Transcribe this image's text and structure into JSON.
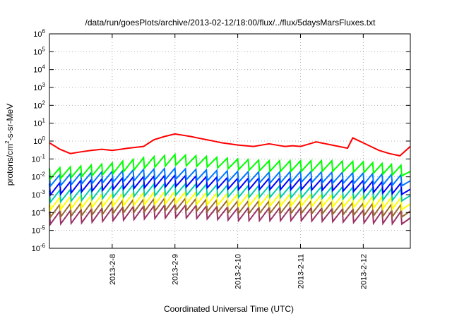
{
  "chart_data": {
    "type": "line",
    "title": "/data/run/goesPlots/archive/2013-02-12/18:00/flux/../flux/5daysMarsFluxes.txt",
    "xlabel": "Coordinated Universal Time (UTC)",
    "ylabel_parts": [
      "protons/cm",
      "2",
      "-s-sr-MeV"
    ],
    "x_ticks": [
      "2013-2-8",
      "2013-2-9",
      "2013-2-10",
      "2013-2-11",
      "2013-2-12"
    ],
    "xlim": [
      "2013-02-07 00:00",
      "2013-02-12 18:00"
    ],
    "y_scale": "log",
    "ylim": [
      1e-06,
      1000000.0
    ],
    "y_ticks": [
      {
        "base": "10",
        "exp": "-6"
      },
      {
        "base": "10",
        "exp": "-5"
      },
      {
        "base": "10",
        "exp": "-4"
      },
      {
        "base": "10",
        "exp": "-3"
      },
      {
        "base": "10",
        "exp": "-2"
      },
      {
        "base": "10",
        "exp": "-1"
      },
      {
        "base": "10",
        "exp": "0"
      },
      {
        "base": "10",
        "exp": "1"
      },
      {
        "base": "10",
        "exp": "2"
      },
      {
        "base": "10",
        "exp": "3"
      },
      {
        "base": "10",
        "exp": "4"
      },
      {
        "base": "10",
        "exp": "5"
      },
      {
        "base": "10",
        "exp": "6"
      }
    ],
    "grid": true,
    "legend": "none",
    "series": [
      {
        "color": "#ff0000",
        "x": [
          "2013-02-07 00:00",
          "2013-02-07 04:00",
          "2013-02-07 08:00",
          "2013-02-07 12:00",
          "2013-02-07 16:00",
          "2013-02-07 20:00",
          "2013-02-08 00:00",
          "2013-02-08 06:00",
          "2013-02-08 12:00",
          "2013-02-08 16:00",
          "2013-02-08 20:00",
          "2013-02-09 00:00",
          "2013-02-09 06:00",
          "2013-02-09 12:00",
          "2013-02-09 18:00",
          "2013-02-10 00:00",
          "2013-02-10 06:00",
          "2013-02-10 12:00",
          "2013-02-10 18:00",
          "2013-02-10 21:00",
          "2013-02-11 00:00",
          "2013-02-11 06:00",
          "2013-02-11 12:00",
          "2013-02-11 18:00",
          "2013-02-11 20:00",
          "2013-02-12 00:00",
          "2013-02-12 06:00",
          "2013-02-12 10:00",
          "2013-02-12 14:00",
          "2013-02-12 18:00"
        ],
        "y": [
          0.8,
          0.35,
          0.2,
          0.25,
          0.3,
          0.35,
          0.3,
          0.4,
          0.5,
          1.2,
          1.8,
          2.5,
          1.8,
          1.2,
          0.8,
          0.6,
          0.5,
          0.7,
          0.5,
          0.55,
          0.5,
          0.9,
          0.6,
          0.4,
          1.5,
          0.8,
          0.3,
          0.2,
          0.15,
          0.5
        ]
      },
      {
        "color": "#00ff00",
        "x": [
          "2013-02-07 00:00",
          "2013-02-07 12:00",
          "2013-02-08 00:00",
          "2013-02-08 12:00",
          "2013-02-09 00:00",
          "2013-02-09 12:00",
          "2013-02-10 00:00",
          "2013-02-10 12:00",
          "2013-02-11 00:00",
          "2013-02-11 12:00",
          "2013-02-12 00:00",
          "2013-02-12 18:00"
        ],
        "y": [
          0.015,
          0.02,
          0.03,
          0.06,
          0.09,
          0.07,
          0.05,
          0.04,
          0.04,
          0.04,
          0.035,
          0.02
        ]
      },
      {
        "color": "#0077ff",
        "x": [
          "2013-02-07 00:00",
          "2013-02-07 12:00",
          "2013-02-08 00:00",
          "2013-02-08 12:00",
          "2013-02-09 00:00",
          "2013-02-09 12:00",
          "2013-02-10 00:00",
          "2013-02-10 12:00",
          "2013-02-11 00:00",
          "2013-02-11 12:00",
          "2013-02-12 00:00",
          "2013-02-12 18:00"
        ],
        "y": [
          0.006,
          0.008,
          0.01,
          0.013,
          0.015,
          0.012,
          0.01,
          0.009,
          0.01,
          0.009,
          0.008,
          0.006
        ]
      },
      {
        "color": "#0000ff",
        "x": [
          "2013-02-07 00:00",
          "2013-02-07 12:00",
          "2013-02-08 00:00",
          "2013-02-08 12:00",
          "2013-02-09 00:00",
          "2013-02-09 12:00",
          "2013-02-10 00:00",
          "2013-02-10 12:00",
          "2013-02-11 00:00",
          "2013-02-11 12:00",
          "2013-02-12 00:00",
          "2013-02-12 18:00"
        ],
        "y": [
          0.002,
          0.003,
          0.004,
          0.005,
          0.006,
          0.005,
          0.004,
          0.004,
          0.004,
          0.0035,
          0.003,
          0.002
        ]
      },
      {
        "color": "#00ccaa",
        "x": [
          "2013-02-07 00:00",
          "2013-02-07 12:00",
          "2013-02-08 00:00",
          "2013-02-08 12:00",
          "2013-02-09 00:00",
          "2013-02-09 12:00",
          "2013-02-10 00:00",
          "2013-02-10 12:00",
          "2013-02-11 00:00",
          "2013-02-11 12:00",
          "2013-02-12 00:00",
          "2013-02-12 18:00"
        ],
        "y": [
          0.0008,
          0.001,
          0.0015,
          0.0018,
          0.002,
          0.0018,
          0.0015,
          0.0015,
          0.0014,
          0.0013,
          0.0012,
          0.0009
        ]
      },
      {
        "color": "#ffff00",
        "x": [
          "2013-02-07 00:00",
          "2013-02-07 12:00",
          "2013-02-08 00:00",
          "2013-02-08 12:00",
          "2013-02-09 00:00",
          "2013-02-09 12:00",
          "2013-02-10 00:00",
          "2013-02-10 12:00",
          "2013-02-11 00:00",
          "2013-02-11 12:00",
          "2013-02-12 00:00",
          "2013-02-12 18:00"
        ],
        "y": [
          0.0003,
          0.0004,
          0.0005,
          0.0006,
          0.0007,
          0.0006,
          0.0005,
          0.0005,
          0.0005,
          0.00045,
          0.0004,
          0.0003
        ]
      },
      {
        "color": "#996633",
        "x": [
          "2013-02-07 00:00",
          "2013-02-07 12:00",
          "2013-02-08 00:00",
          "2013-02-08 12:00",
          "2013-02-09 00:00",
          "2013-02-09 12:00",
          "2013-02-10 00:00",
          "2013-02-10 12:00",
          "2013-02-11 00:00",
          "2013-02-11 12:00",
          "2013-02-12 00:00",
          "2013-02-12 18:00"
        ],
        "y": [
          0.00012,
          0.00015,
          0.0002,
          0.00025,
          0.0003,
          0.00025,
          0.0002,
          0.0002,
          0.0002,
          0.00018,
          0.00015,
          0.00012
        ]
      },
      {
        "color": "#993366",
        "x": [
          "2013-02-07 00:00",
          "2013-02-07 12:00",
          "2013-02-08 00:00",
          "2013-02-08 12:00",
          "2013-02-09 00:00",
          "2013-02-09 12:00",
          "2013-02-10 00:00",
          "2013-02-10 12:00",
          "2013-02-11 00:00",
          "2013-02-11 12:00",
          "2013-02-12 00:00",
          "2013-02-12 18:00"
        ],
        "y": [
          5e-05,
          6e-05,
          8e-05,
          0.0001,
          0.00012,
          0.0001,
          8e-05,
          8e-05,
          8e-05,
          7e-05,
          6e-05,
          5e-05
        ]
      }
    ]
  }
}
